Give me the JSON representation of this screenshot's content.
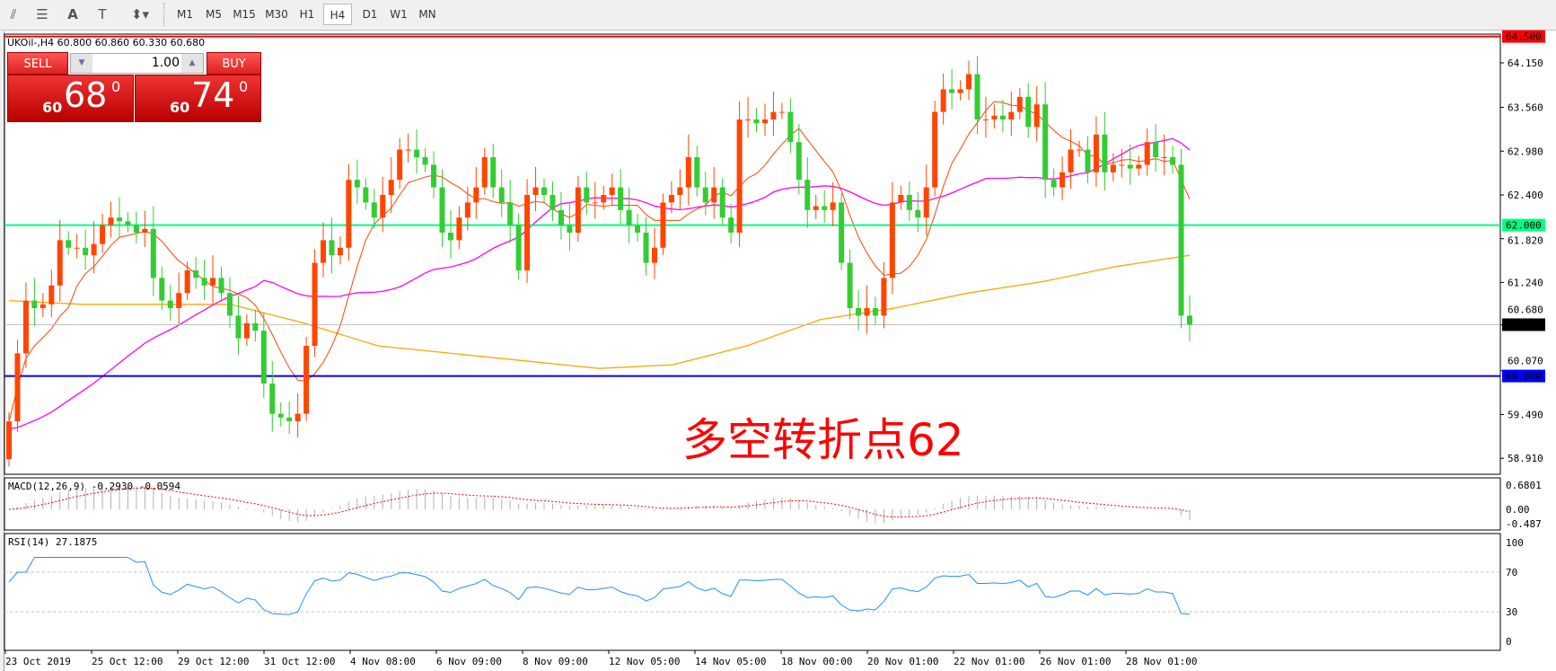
{
  "toolbar": {
    "icons": [
      "fibonacci-fan-icon",
      "fibonacci-grid-icon",
      "text-icon",
      "text-label-icon",
      "arrows-icon"
    ],
    "timeframes": [
      "M1",
      "M5",
      "M15",
      "M30",
      "H1",
      "H4",
      "D1",
      "W1",
      "MN"
    ],
    "active": "H4"
  },
  "chart": {
    "title": "UKOil-,H4  60.800 60.860 60.330 60.680",
    "symbol": "UKOil-",
    "timeframe": "H4",
    "open": 60.8,
    "high": 60.86,
    "low": 60.33,
    "close": 60.68
  },
  "trade_panel": {
    "sell_label": "SELL",
    "buy_label": "BUY",
    "lot": "1.00",
    "sell_small": "60",
    "sell_big": "68",
    "sell_sup": "0",
    "buy_small": "60",
    "buy_big": "74",
    "buy_sup": "0"
  },
  "annotation": "多空转折点62",
  "colors": {
    "up": "#ff4500",
    "down": "#32cd32",
    "ma_fast": "#ff4500",
    "ma_mid": "#ff00ff",
    "ma_slow": "#ffa500",
    "line_64_5": "#ff0000",
    "line_62": "#00ff7f",
    "line_60": "#0000ff",
    "rsi": "#1e90ff"
  },
  "chart_data": {
    "type": "candlestick",
    "price_ticks": [
      "64.150",
      "63.560",
      "62.980",
      "62.400",
      "61.820",
      "61.240",
      "60.680",
      "60.070",
      "59.490",
      "58.910"
    ],
    "price_range": [
      58.6,
      64.55
    ],
    "hlines": [
      {
        "value": 64.5,
        "label": "64.500",
        "color": "#ff0000"
      },
      {
        "value": 62.0,
        "label": "62.000",
        "color": "#00ff7f"
      },
      {
        "value": 60.0,
        "label": "60.000",
        "color": "#0000ff"
      }
    ],
    "last_price": {
      "value": 60.68,
      "label": "60.680"
    },
    "closes": [
      59.4,
      60.3,
      61.0,
      60.9,
      60.95,
      61.2,
      61.8,
      61.7,
      61.7,
      61.6,
      61.75,
      62.0,
      62.1,
      62.05,
      62.0,
      61.9,
      61.95,
      61.3,
      61.0,
      60.9,
      61.1,
      61.4,
      61.3,
      61.2,
      61.3,
      61.1,
      60.8,
      60.5,
      60.7,
      60.6,
      59.9,
      59.5,
      59.45,
      59.4,
      59.5,
      60.4,
      61.5,
      61.8,
      61.6,
      61.7,
      62.6,
      62.5,
      62.3,
      62.1,
      62.4,
      62.6,
      63.0,
      63.0,
      62.9,
      62.8,
      62.5,
      61.9,
      61.8,
      62.1,
      62.3,
      62.5,
      62.9,
      62.5,
      62.3,
      62.0,
      61.4,
      62.4,
      62.5,
      62.4,
      62.2,
      62.0,
      61.9,
      62.5,
      62.3,
      62.3,
      62.4,
      62.5,
      62.2,
      62.0,
      61.9,
      61.5,
      61.7,
      62.3,
      62.4,
      62.5,
      62.9,
      62.5,
      62.3,
      62.5,
      62.1,
      61.9,
      63.4,
      63.4,
      63.35,
      63.4,
      63.5,
      63.5,
      63.1,
      62.6,
      62.2,
      62.25,
      62.2,
      62.3,
      61.5,
      60.9,
      60.8,
      60.9,
      60.8,
      61.3,
      62.3,
      62.4,
      62.2,
      62.1,
      62.5,
      63.5,
      63.8,
      63.75,
      63.8,
      64.0,
      63.4,
      63.4,
      63.45,
      63.4,
      63.5,
      63.7,
      63.3,
      63.6,
      62.6,
      62.5,
      62.7,
      63.0,
      63.0,
      62.7,
      63.2,
      62.7,
      62.8,
      62.8,
      62.75,
      62.8,
      63.1,
      62.9,
      62.9,
      62.8,
      60.8,
      60.68
    ],
    "ma_slow": [
      61.0,
      60.95,
      60.95,
      60.95,
      60.7,
      60.4,
      60.3,
      60.2,
      60.1,
      60.15,
      60.4,
      60.75,
      60.9,
      61.1,
      61.25,
      61.45,
      61.6
    ],
    "date_labels": [
      "23 Oct 2019",
      "25 Oct 12:00",
      "29 Oct 12:00",
      "31 Oct 12:00",
      "4 Nov 08:00",
      "6 Nov 09:00",
      "8 Nov 09:00",
      "12 Nov 05:00",
      "14 Nov 05:00",
      "18 Nov 00:00",
      "20 Nov 01:00",
      "22 Nov 01:00",
      "26 Nov 01:00",
      "28 Nov 01:00"
    ],
    "macd": {
      "label": "MACD(12,26,9) -0.2930 -0.0594",
      "ticks": [
        "0.6801",
        "0.00",
        "-0.487"
      ],
      "range": [
        -0.487,
        0.6801
      ]
    },
    "rsi": {
      "label": "RSI(14) 27.1875",
      "ticks": [
        "100",
        "70",
        "30",
        "0"
      ],
      "levels": [
        70,
        30
      ]
    }
  }
}
